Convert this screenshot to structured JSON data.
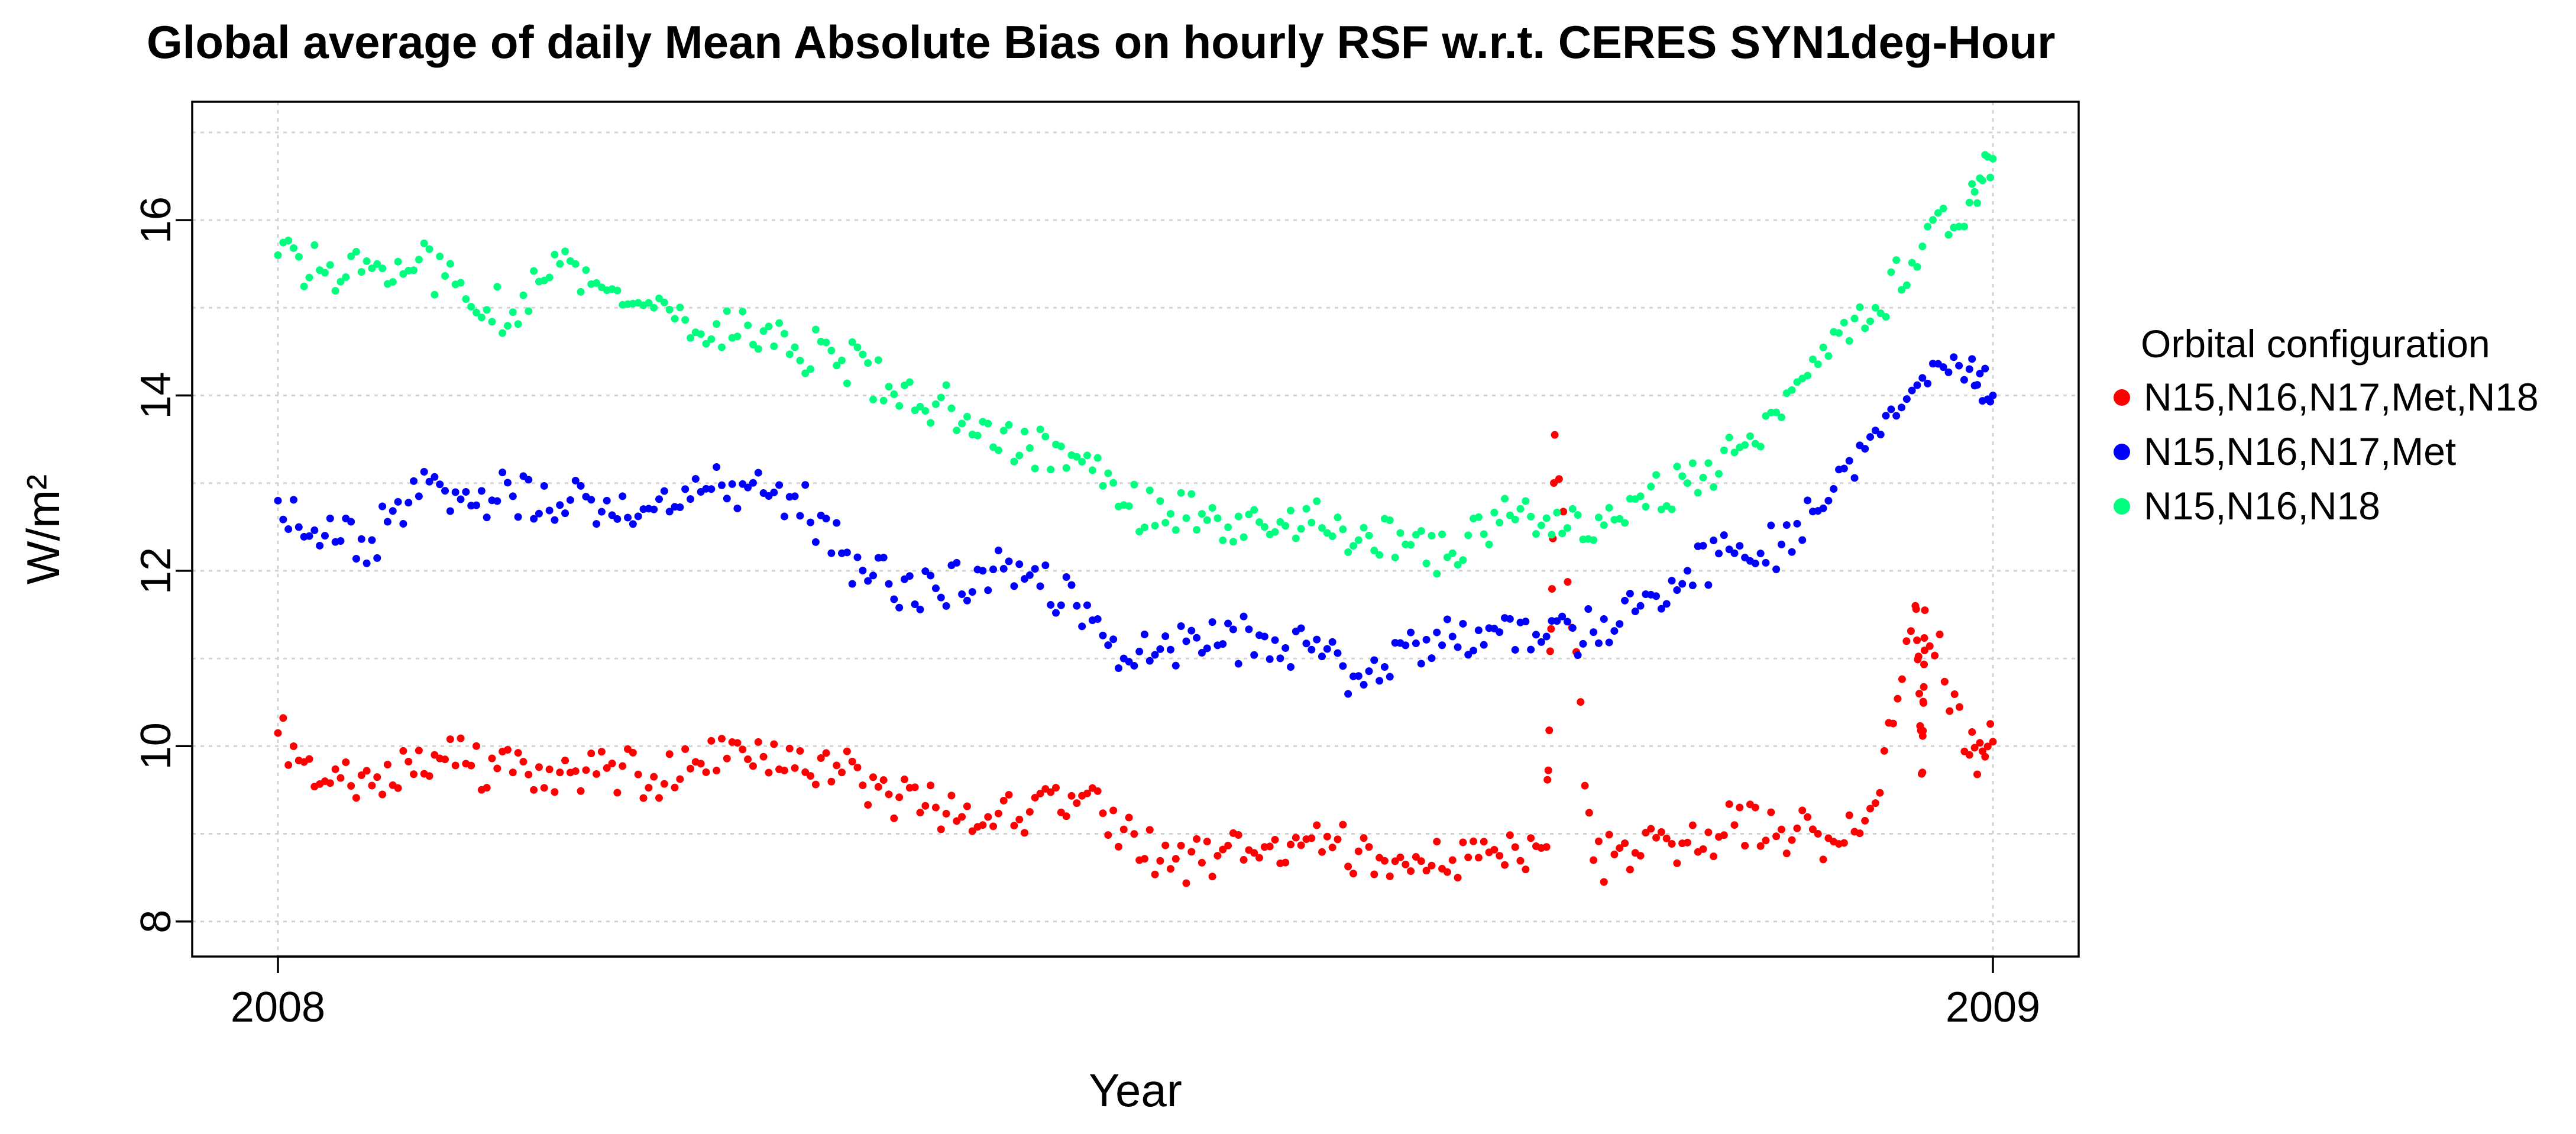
{
  "chart_data": {
    "type": "scatter",
    "title": "Global average of daily Mean Absolute Bias on hourly RSF w.r.t. CERES SYN1deg-Hour",
    "xlabel": "Year",
    "ylabel": "W/m²",
    "x_ticks": [
      {
        "value": 2008,
        "label": "2008"
      },
      {
        "value": 2009,
        "label": "2009"
      }
    ],
    "y_ticks": [
      {
        "value": 8,
        "label": "8"
      },
      {
        "value": 10,
        "label": "10"
      },
      {
        "value": 12,
        "label": "12"
      },
      {
        "value": 14,
        "label": "14"
      },
      {
        "value": 16,
        "label": "16"
      }
    ],
    "xlim": [
      2007.95,
      2009.05
    ],
    "ylim": [
      7.6,
      17.35
    ],
    "grid": true,
    "grid_y_values": [
      8,
      9,
      10,
      11,
      12,
      13,
      14,
      15,
      16,
      17
    ],
    "legend": {
      "title": "Orbital configuration",
      "position": "right",
      "entries": [
        {
          "label": "N15,N16,N17,Met,N18",
          "color": "#ff0000"
        },
        {
          "label": "N15,N16,N17,Met",
          "color": "#0000ff"
        },
        {
          "label": "N15,N16,N18",
          "color": "#00ff7f"
        }
      ]
    },
    "series": [
      {
        "name": "N15,N16,N17,Met,N18",
        "color": "#ff0000",
        "x": [
          2008.0,
          2008.0274,
          2008.0548,
          2008.0822,
          2008.1096,
          2008.137,
          2008.1644,
          2008.1918,
          2008.2192,
          2008.2466,
          2008.274,
          2008.3014,
          2008.3288,
          2008.3562,
          2008.3836,
          2008.411,
          2008.4384,
          2008.4658,
          2008.4932,
          2008.5205,
          2008.5479,
          2008.5753,
          2008.6027,
          2008.6301,
          2008.6575,
          2008.6849,
          2008.7123,
          2008.7397,
          2008.7671,
          2008.7945,
          2008.8219,
          2008.8493,
          2008.8767,
          2008.9041,
          2008.9315,
          2008.9589,
          2008.9863,
          2009.0,
          2008.7445,
          2008.9548,
          2008.9603
        ],
        "y": [
          10.15,
          9.6,
          9.55,
          9.95,
          9.8,
          9.7,
          9.7,
          9.75,
          9.65,
          9.8,
          9.85,
          9.75,
          9.7,
          9.45,
          9.3,
          9.1,
          9.25,
          9.35,
          9.05,
          8.6,
          8.75,
          8.85,
          8.95,
          8.8,
          8.65,
          8.7,
          8.75,
          8.85,
          8.7,
          8.75,
          8.9,
          9.1,
          9.05,
          8.95,
          9.35,
          9.7,
          9.9,
          10.05,
          13.55,
          11.6,
          11.55
        ]
      },
      {
        "name": "N15,N16,N17,Met",
        "color": "#0000ff",
        "x": [
          2008.0,
          2008.0274,
          2008.0548,
          2008.0822,
          2008.1096,
          2008.137,
          2008.1644,
          2008.1918,
          2008.2192,
          2008.2466,
          2008.274,
          2008.3014,
          2008.3288,
          2008.3562,
          2008.3836,
          2008.411,
          2008.4384,
          2008.4658,
          2008.4932,
          2008.5205,
          2008.5479,
          2008.5753,
          2008.6027,
          2008.6301,
          2008.6575,
          2008.6849,
          2008.7123,
          2008.7397,
          2008.7671,
          2008.7945,
          2008.8219,
          2008.8493,
          2008.8767,
          2008.9041,
          2008.9315,
          2008.9589,
          2008.9863,
          2009.0
        ],
        "y": [
          12.8,
          12.4,
          12.35,
          12.85,
          12.9,
          12.85,
          12.75,
          12.8,
          12.7,
          12.9,
          12.95,
          12.85,
          12.2,
          11.85,
          11.8,
          12.0,
          11.95,
          11.6,
          11.0,
          11.1,
          11.15,
          11.25,
          11.1,
          10.8,
          11.15,
          11.25,
          11.3,
          11.25,
          11.3,
          11.6,
          12.0,
          12.2,
          12.3,
          12.8,
          13.6,
          14.2,
          14.3,
          14.0
        ]
      },
      {
        "name": "N15,N16,N18",
        "color": "#00ff7f",
        "x": [
          2008.0,
          2008.0274,
          2008.0548,
          2008.0822,
          2008.1096,
          2008.137,
          2008.1644,
          2008.1918,
          2008.2192,
          2008.2466,
          2008.274,
          2008.3014,
          2008.3288,
          2008.3562,
          2008.3836,
          2008.411,
          2008.4384,
          2008.4658,
          2008.4932,
          2008.5205,
          2008.5479,
          2008.5753,
          2008.6027,
          2008.6301,
          2008.6575,
          2008.6849,
          2008.7123,
          2008.7397,
          2008.7671,
          2008.7945,
          2008.8219,
          2008.8493,
          2008.8767,
          2008.9041,
          2008.9315,
          2008.9589,
          2008.9863,
          2009.0
        ],
        "y": [
          15.6,
          15.4,
          15.45,
          15.55,
          15.1,
          14.95,
          15.5,
          15.2,
          15.0,
          14.7,
          14.8,
          14.55,
          14.4,
          14.1,
          13.9,
          13.7,
          13.4,
          13.3,
          12.75,
          12.65,
          12.6,
          12.5,
          12.55,
          12.35,
          12.3,
          12.2,
          12.55,
          12.6,
          12.35,
          12.85,
          13.0,
          13.35,
          13.75,
          14.45,
          15.0,
          15.7,
          16.2,
          16.7
        ]
      }
    ]
  }
}
